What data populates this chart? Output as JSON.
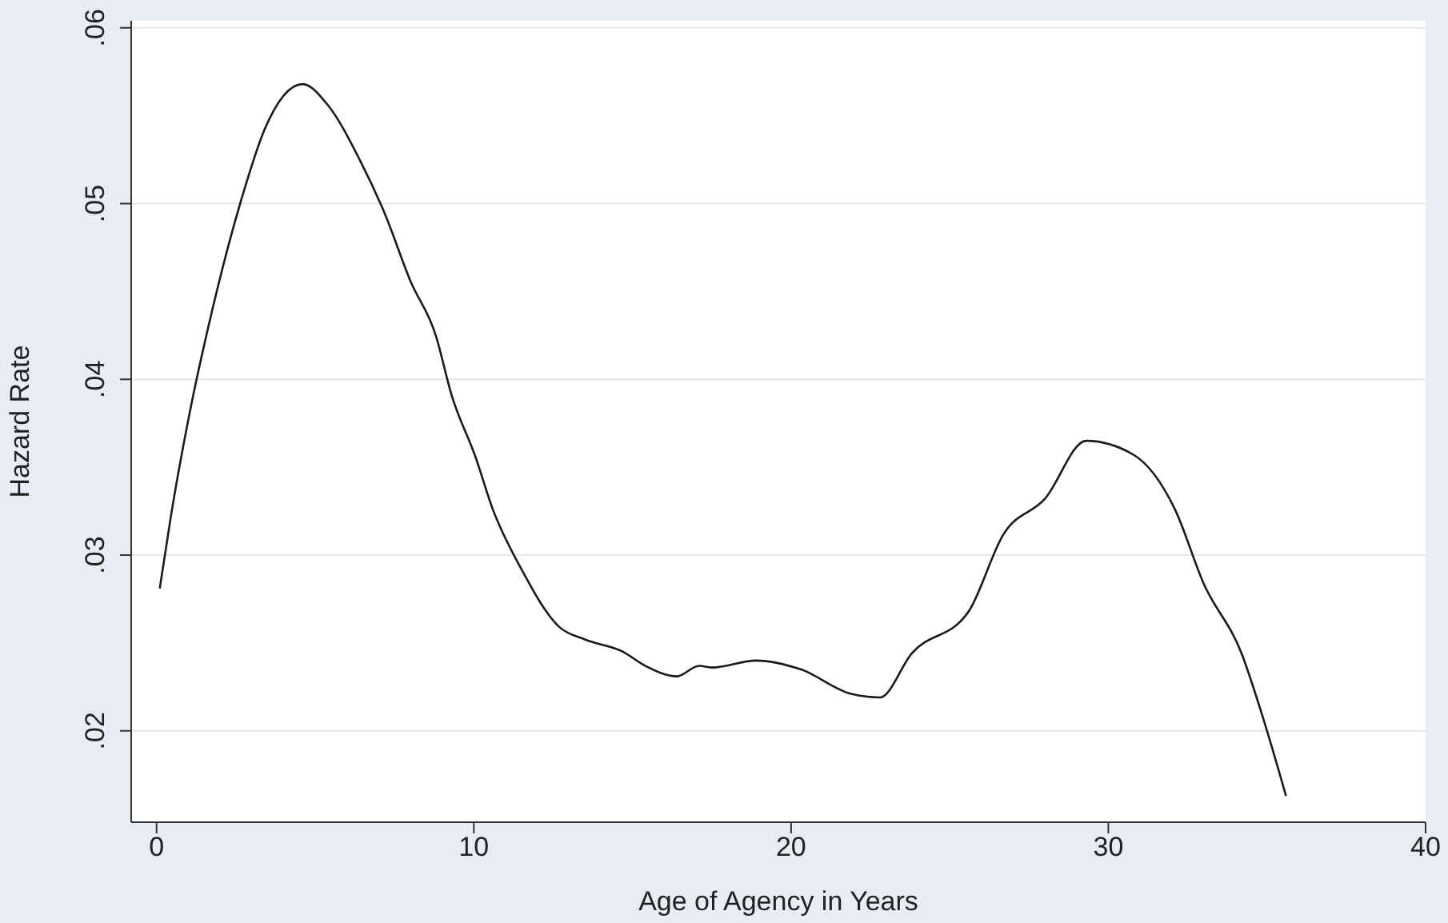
{
  "chart_data": {
    "type": "line",
    "xlabel": "Age of Agency in Years",
    "ylabel": "Hazard Rate",
    "x": [
      0.1,
      0.45,
      1.0,
      1.75,
      2.7,
      3.4,
      4.6,
      5.4,
      6.4,
      7.2,
      8.0,
      8.8,
      9.3,
      10.05,
      10.6,
      11.5,
      12.7,
      13.5,
      14.7,
      15.4,
      16.4,
      17.1,
      17.5,
      18.9,
      20.3,
      21.9,
      22.8,
      23.8,
      25.6,
      26.7,
      28.0,
      29.3,
      30.8,
      32.1,
      33.0,
      34.2,
      34.9,
      35.6
    ],
    "series": [
      {
        "color": "#1a1a1a",
        "values": [
          0.0281,
          0.0322,
          0.0377,
          0.0439,
          0.0504,
          0.0542,
          0.0568,
          0.0556,
          0.0525,
          0.0494,
          0.0456,
          0.0425,
          0.0391,
          0.0356,
          0.0326,
          0.0292,
          0.0259,
          0.0252,
          0.0245,
          0.0237,
          0.0231,
          0.0237,
          0.0236,
          0.024,
          0.0235,
          0.0221,
          0.0219,
          0.0244,
          0.0268,
          0.0312,
          0.0332,
          0.0365,
          0.0357,
          0.0326,
          0.0284,
          0.0244,
          0.0206,
          0.0163
        ]
      }
    ],
    "xlim": [
      -0.8,
      40
    ],
    "xticks": [
      0,
      10,
      20,
      30,
      40
    ],
    "ylim": [
      0.0148,
      0.0604
    ],
    "yticks": [
      {
        "value": 0.02,
        "label": ".02"
      },
      {
        "value": 0.03,
        "label": ".03"
      },
      {
        "value": 0.04,
        "label": ".04"
      },
      {
        "value": 0.05,
        "label": ".05"
      },
      {
        "value": 0.06,
        "label": ".06"
      }
    ],
    "grid": "y",
    "marker": "none",
    "line_style": "solid"
  }
}
